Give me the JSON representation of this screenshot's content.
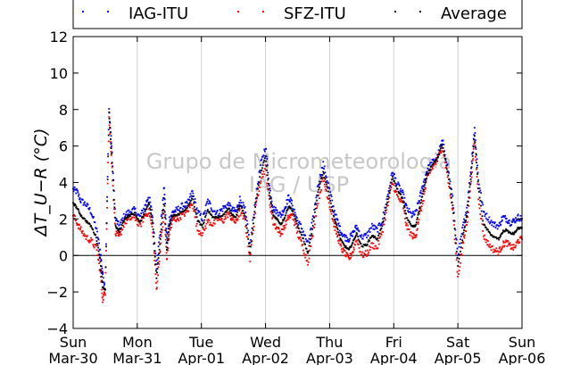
{
  "chart_data": {
    "type": "scatter",
    "ylabel": "ΔT_U−R (°C)",
    "ylim": [
      -4,
      12
    ],
    "yticks": [
      -4,
      -2,
      0,
      2,
      4,
      6,
      8,
      10,
      12
    ],
    "x_days": [
      {
        "day": "Sun",
        "date": "Mar-30"
      },
      {
        "day": "Mon",
        "date": "Mar-31"
      },
      {
        "day": "Tue",
        "date": "Apr-01"
      },
      {
        "day": "Wed",
        "date": "Apr-02"
      },
      {
        "day": "Thu",
        "date": "Apr-03"
      },
      {
        "day": "Fri",
        "date": "Apr-04"
      },
      {
        "day": "Sat",
        "date": "Apr-05"
      },
      {
        "day": "Sun",
        "date": "Apr-06"
      }
    ],
    "xlim_days": [
      0,
      7
    ],
    "grid": "vertical at each day",
    "reference_line_y": 0,
    "legend_position": "top",
    "watermark": [
      "Grupo de Micrometeorologia",
      "IAG / USP"
    ],
    "series": [
      {
        "name": "IAG-ITU",
        "color": "#0000ff",
        "x": [
          0,
          0.06,
          0.12,
          0.2,
          0.28,
          0.36,
          0.42,
          0.46,
          0.5,
          0.56,
          0.6,
          0.66,
          0.72,
          0.8,
          0.88,
          0.96,
          1.04,
          1.12,
          1.18,
          1.24,
          1.3,
          1.36,
          1.42,
          1.46,
          1.5,
          1.56,
          1.62,
          1.7,
          1.78,
          1.86,
          1.94,
          2.02,
          2.1,
          2.18,
          2.26,
          2.34,
          2.42,
          2.48,
          2.54,
          2.6,
          2.68,
          2.76,
          2.84,
          2.92,
          3.0,
          3.06,
          3.12,
          3.18,
          3.24,
          3.3,
          3.36,
          3.42,
          3.5,
          3.58,
          3.66,
          3.74,
          3.82,
          3.9,
          3.98,
          4.06,
          4.12,
          4.18,
          4.24,
          4.3,
          4.36,
          4.42,
          4.5,
          4.58,
          4.66,
          4.74,
          4.82,
          4.9,
          4.98,
          5.06,
          5.14,
          5.2,
          5.28,
          5.34,
          5.4,
          5.46,
          5.52,
          5.6,
          5.68,
          5.76,
          5.84,
          5.92,
          6.0,
          6.08,
          6.14,
          6.2,
          6.26,
          6.32,
          6.4,
          6.48,
          6.56,
          6.64,
          6.7,
          6.76,
          6.82,
          6.88,
          6.94,
          7.0
        ],
        "y": [
          3.6,
          3.5,
          3.0,
          2.8,
          2.4,
          1.5,
          0.3,
          -1.0,
          -1.8,
          8.0,
          6.0,
          2.0,
          1.6,
          2.2,
          2.4,
          2.5,
          2.1,
          2.7,
          3.3,
          2.1,
          -0.6,
          1.4,
          3.8,
          0.8,
          2.0,
          2.4,
          2.5,
          2.7,
          2.8,
          3.5,
          2.4,
          2.0,
          3.0,
          2.5,
          2.3,
          2.6,
          2.8,
          2.5,
          2.4,
          3.1,
          2.5,
          0.6,
          3.0,
          4.9,
          6.0,
          3.8,
          2.6,
          2.4,
          2.2,
          2.6,
          3.2,
          2.8,
          1.9,
          1.4,
          0.6,
          2.0,
          3.9,
          5.0,
          3.9,
          2.6,
          1.9,
          1.3,
          1.0,
          0.9,
          1.2,
          1.6,
          1.0,
          1.1,
          1.6,
          1.4,
          1.9,
          3.2,
          4.6,
          3.9,
          3.4,
          2.6,
          2.2,
          2.3,
          3.1,
          3.9,
          4.7,
          5.1,
          5.4,
          6.3,
          4.9,
          3.1,
          -0.1,
          1.6,
          2.6,
          4.6,
          7.0,
          4.2,
          2.4,
          2.0,
          1.7,
          1.6,
          2.1,
          2.0,
          1.8,
          1.9,
          2.1,
          2.0
        ]
      },
      {
        "name": "SFZ-ITU",
        "color": "#ff0000",
        "x": [
          0,
          0.06,
          0.12,
          0.2,
          0.28,
          0.36,
          0.42,
          0.46,
          0.5,
          0.56,
          0.6,
          0.66,
          0.72,
          0.8,
          0.88,
          0.96,
          1.04,
          1.12,
          1.18,
          1.24,
          1.3,
          1.36,
          1.42,
          1.46,
          1.5,
          1.56,
          1.62,
          1.7,
          1.78,
          1.86,
          1.94,
          2.02,
          2.1,
          2.18,
          2.26,
          2.34,
          2.42,
          2.48,
          2.54,
          2.6,
          2.68,
          2.76,
          2.84,
          2.92,
          3.0,
          3.06,
          3.12,
          3.18,
          3.24,
          3.3,
          3.36,
          3.42,
          3.5,
          3.58,
          3.66,
          3.74,
          3.82,
          3.9,
          3.98,
          4.06,
          4.12,
          4.18,
          4.24,
          4.3,
          4.36,
          4.42,
          4.5,
          4.58,
          4.66,
          4.74,
          4.82,
          4.9,
          4.98,
          5.06,
          5.14,
          5.2,
          5.28,
          5.34,
          5.4,
          5.46,
          5.52,
          5.6,
          5.68,
          5.76,
          5.84,
          5.92,
          6.0,
          6.08,
          6.14,
          6.2,
          6.26,
          6.32,
          6.4,
          6.48,
          6.56,
          6.64,
          6.7,
          6.76,
          6.82,
          6.88,
          6.94,
          7.0
        ],
        "y": [
          2.2,
          1.8,
          1.4,
          1.0,
          0.8,
          0.4,
          -0.8,
          -2.4,
          -2.0,
          7.5,
          5.2,
          1.2,
          1.0,
          1.8,
          2.0,
          2.1,
          1.6,
          2.2,
          2.4,
          1.4,
          -1.9,
          0.4,
          2.4,
          -0.2,
          1.2,
          2.0,
          2.0,
          2.2,
          2.4,
          2.9,
          1.4,
          1.2,
          1.9,
          1.7,
          2.0,
          1.9,
          2.3,
          2.0,
          1.8,
          2.4,
          1.9,
          -0.2,
          2.4,
          4.1,
          4.8,
          3.0,
          1.8,
          1.5,
          1.2,
          1.6,
          2.1,
          2.2,
          1.2,
          0.5,
          -0.4,
          1.2,
          3.0,
          4.2,
          3.1,
          1.8,
          1.1,
          0.4,
          0.1,
          -0.2,
          0.2,
          0.9,
          0.0,
          0.1,
          0.6,
          0.4,
          1.3,
          2.6,
          4.0,
          3.2,
          2.8,
          1.6,
          1.1,
          1.0,
          2.2,
          3.0,
          4.2,
          4.8,
          5.2,
          6.0,
          4.3,
          2.4,
          -1.2,
          0.6,
          1.7,
          3.8,
          6.3,
          3.2,
          1.1,
          0.6,
          0.3,
          0.2,
          0.6,
          0.7,
          0.5,
          0.4,
          0.8,
          0.9
        ]
      },
      {
        "name": "Average",
        "color": "#000000",
        "x": [
          0,
          0.06,
          0.12,
          0.2,
          0.28,
          0.36,
          0.42,
          0.46,
          0.5,
          0.56,
          0.6,
          0.66,
          0.72,
          0.8,
          0.88,
          0.96,
          1.04,
          1.12,
          1.18,
          1.24,
          1.3,
          1.36,
          1.42,
          1.46,
          1.5,
          1.56,
          1.62,
          1.7,
          1.78,
          1.86,
          1.94,
          2.02,
          2.1,
          2.18,
          2.26,
          2.34,
          2.42,
          2.48,
          2.54,
          2.6,
          2.68,
          2.76,
          2.84,
          2.92,
          3.0,
          3.06,
          3.12,
          3.18,
          3.24,
          3.3,
          3.36,
          3.42,
          3.5,
          3.58,
          3.66,
          3.74,
          3.82,
          3.9,
          3.98,
          4.06,
          4.12,
          4.18,
          4.24,
          4.3,
          4.36,
          4.42,
          4.5,
          4.58,
          4.66,
          4.74,
          4.82,
          4.9,
          4.98,
          5.06,
          5.14,
          5.2,
          5.28,
          5.34,
          5.4,
          5.46,
          5.52,
          5.6,
          5.68,
          5.76,
          5.84,
          5.92,
          6.0,
          6.08,
          6.14,
          6.2,
          6.26,
          6.32,
          6.4,
          6.48,
          6.56,
          6.64,
          6.7,
          6.76,
          6.82,
          6.88,
          6.94,
          7.0
        ],
        "y": [
          2.9,
          2.6,
          2.2,
          1.9,
          1.6,
          1.0,
          -0.2,
          -1.7,
          -1.9,
          7.8,
          5.6,
          1.6,
          1.3,
          2.0,
          2.2,
          2.3,
          1.8,
          2.4,
          2.9,
          1.8,
          -1.2,
          0.9,
          3.1,
          0.3,
          1.6,
          2.2,
          2.2,
          2.4,
          2.6,
          3.2,
          1.9,
          1.6,
          2.5,
          2.1,
          2.1,
          2.2,
          2.6,
          2.2,
          2.1,
          2.8,
          2.2,
          0.2,
          2.7,
          4.5,
          5.4,
          3.4,
          2.2,
          2.0,
          1.7,
          2.1,
          2.7,
          2.5,
          1.6,
          1.0,
          0.1,
          1.6,
          3.5,
          4.6,
          3.5,
          2.2,
          1.5,
          0.8,
          0.5,
          0.3,
          0.7,
          1.2,
          0.5,
          0.6,
          1.1,
          0.9,
          1.6,
          2.9,
          4.3,
          3.6,
          3.1,
          2.1,
          1.6,
          1.6,
          2.6,
          3.5,
          4.4,
          5.0,
          5.3,
          6.1,
          4.6,
          2.7,
          -0.6,
          1.1,
          2.2,
          4.2,
          6.6,
          3.7,
          1.7,
          1.3,
          1.0,
          0.9,
          1.3,
          1.4,
          1.2,
          1.2,
          1.5,
          1.5
        ]
      }
    ]
  }
}
